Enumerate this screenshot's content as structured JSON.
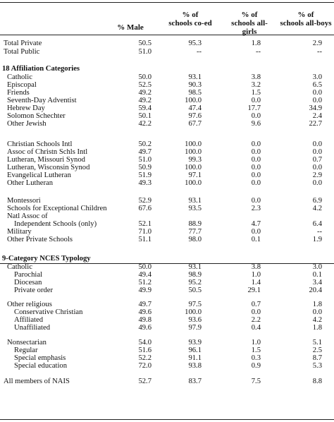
{
  "headers": {
    "male": "% Male",
    "coed": [
      "% of",
      "schools co-ed"
    ],
    "girls": [
      "% of",
      "schools all-girls"
    ],
    "boys": [
      "% of",
      "schools all-boys"
    ]
  },
  "rows": [
    {
      "label": "Total Private",
      "indent": 0,
      "v": [
        "50.5",
        "95.3",
        "1.8",
        "2.9"
      ]
    },
    {
      "label": "Total Public",
      "indent": 0,
      "v": [
        "51.0",
        "--",
        "--",
        "--"
      ]
    },
    {
      "label": "18 Affiliation Categories",
      "section": true
    },
    {
      "label": "Catholic",
      "indent": 1,
      "v": [
        "50.0",
        "93.1",
        "3.8",
        "3.0"
      ]
    },
    {
      "label": "Episcopal",
      "indent": 1,
      "v": [
        "52.5",
        "90.3",
        "3.2",
        "6.5"
      ]
    },
    {
      "label": "Friends",
      "indent": 1,
      "v": [
        "49.2",
        "98.5",
        "1.5",
        "0.0"
      ]
    },
    {
      "label": "Seventh-Day Adventist",
      "indent": 1,
      "v": [
        "49.2",
        "100.0",
        "0.0",
        "0.0"
      ]
    },
    {
      "label": "Hebrew Day",
      "indent": 1,
      "v": [
        "59.4",
        "47.4",
        "17.7",
        "34.9"
      ]
    },
    {
      "label": "Solomon Schechter",
      "indent": 1,
      "v": [
        "50.1",
        "97.6",
        "0.0",
        "2.4"
      ]
    },
    {
      "label": "Other Jewish",
      "indent": 1,
      "v": [
        "42.2",
        "67.7",
        "9.6",
        "22.7"
      ]
    },
    {
      "label": "Christian Schools Intl",
      "indent": 1,
      "v": [
        "50.2",
        "100.0",
        "0.0",
        "0.0"
      ]
    },
    {
      "label": "Assoc of Christn Schls Intl",
      "indent": 1,
      "v": [
        "49.7",
        "100.0",
        "0.0",
        "0.0"
      ]
    },
    {
      "label": "Lutheran, Missouri Synod",
      "indent": 1,
      "v": [
        "51.0",
        "99.3",
        "0.0",
        "0.7"
      ]
    },
    {
      "label": "Lutheran, Wisconsin Synod",
      "indent": 1,
      "v": [
        "50.9",
        "100.0",
        "0.0",
        "0.0"
      ]
    },
    {
      "label": "Evangelical Lutheran",
      "indent": 1,
      "v": [
        "51.9",
        "97.1",
        "0.0",
        "2.9"
      ]
    },
    {
      "label": "Other Lutheran",
      "indent": 1,
      "v": [
        "49.3",
        "100.0",
        "0.0",
        "0.0"
      ]
    },
    {
      "label": "Montessori",
      "indent": 1,
      "v": [
        "52.9",
        "93.1",
        "0.0",
        "6.9"
      ]
    },
    {
      "label": "Schools for Exceptional Children",
      "indent": 1,
      "v": [
        "67.6",
        "93.5",
        "2.3",
        "4.2"
      ]
    },
    {
      "label": "Natl Assoc of",
      "indent": 1
    },
    {
      "label": "Independent Schools (only)",
      "indent": 2,
      "v": [
        "52.1",
        "88.9",
        "4.7",
        "6.4"
      ]
    },
    {
      "label": "Military",
      "indent": 1,
      "v": [
        "71.0",
        "77.7",
        "0.0",
        "--"
      ]
    },
    {
      "label": "Other Private Schools",
      "indent": 1,
      "v": [
        "51.1",
        "98.0",
        "0.1",
        "1.9"
      ]
    },
    {
      "label": "9-Category NCES Typology",
      "section": true
    },
    {
      "label": "Catholic",
      "indent": 1,
      "v": [
        "50.0",
        "93.1",
        "3.8",
        "3.0"
      ]
    },
    {
      "label": "Parochial",
      "indent": 2,
      "v": [
        "49.4",
        "98.9",
        "1.0",
        "0.1"
      ]
    },
    {
      "label": "Diocesan",
      "indent": 2,
      "v": [
        "51.2",
        "95.2",
        "1.4",
        "3.4"
      ]
    },
    {
      "label": "Private order",
      "indent": 2,
      "v": [
        "49.9",
        "50.5",
        "29.1",
        "20.4"
      ]
    },
    {
      "label": "Other religious",
      "indent": 1,
      "v": [
        "49.7",
        "97.5",
        "0.7",
        "1.8"
      ]
    },
    {
      "label": "Conservative Christian",
      "indent": 2,
      "v": [
        "49.6",
        "100.0",
        "0.0",
        "0.0"
      ]
    },
    {
      "label": "Affiliated",
      "indent": 2,
      "v": [
        "49.8",
        "93.6",
        "2.2",
        "4.2"
      ]
    },
    {
      "label": "Unaffiliated",
      "indent": 2,
      "v": [
        "49.6",
        "97.9",
        "0.4",
        "1.8"
      ]
    },
    {
      "label": "Nonsectarian",
      "indent": 1,
      "v": [
        "54.0",
        "93.9",
        "1.0",
        "5.1"
      ]
    },
    {
      "label": "Regular",
      "indent": 2,
      "v": [
        "51.6",
        "96.1",
        "1.5",
        "2.5"
      ]
    },
    {
      "label": "Special emphasis",
      "indent": 2,
      "v": [
        "52.2",
        "91.1",
        "0.3",
        "8.7"
      ]
    },
    {
      "label": "Special education",
      "indent": 2,
      "v": [
        "72.0",
        "93.8",
        "0.9",
        "5.3"
      ]
    },
    {
      "label": "All members of NAIS",
      "indent": 0,
      "v": [
        "52.7",
        "83.7",
        "7.5",
        "8.8"
      ]
    }
  ]
}
